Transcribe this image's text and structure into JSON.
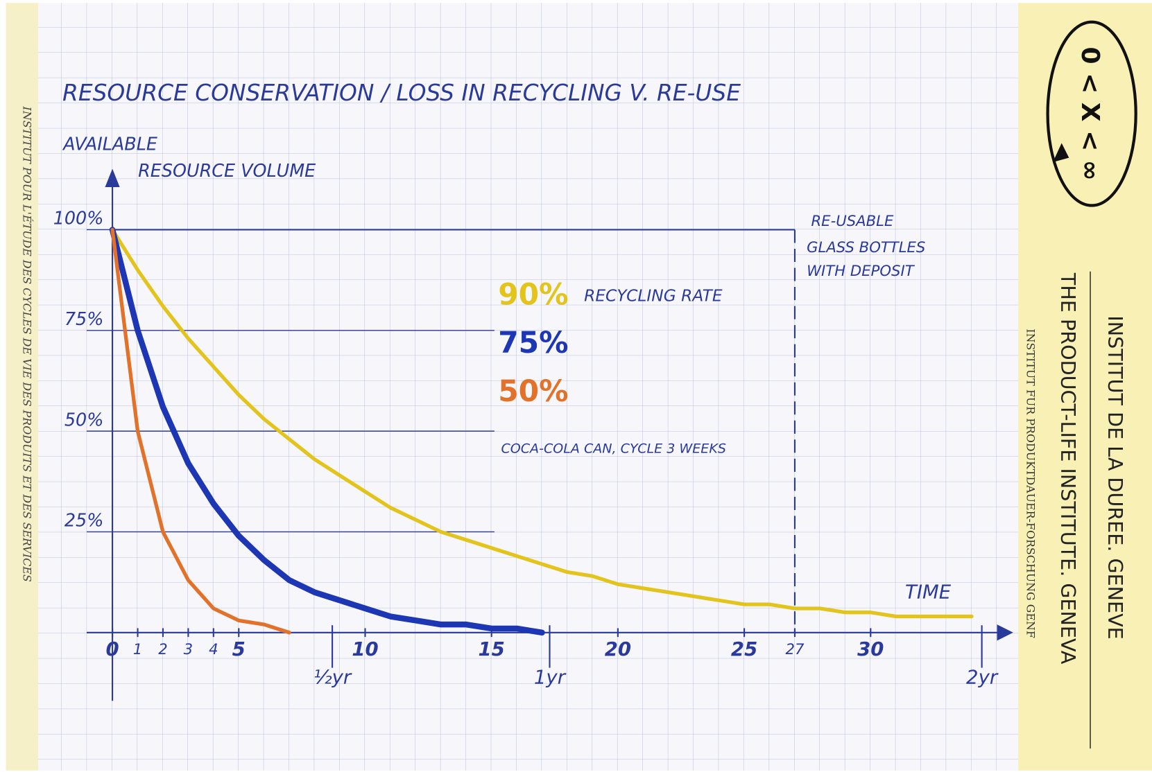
{
  "chart_data": {
    "type": "line",
    "title": "RESOURCE CONSERVATION / LOSS IN RECYCLING V. RE-USE",
    "ylabel": [
      "AVAILABLE",
      "RESOURCE VOLUME"
    ],
    "xlabel": "TIME",
    "legend_title": "RECYCLING RATE",
    "x": [
      0,
      1,
      2,
      3,
      4,
      5,
      6,
      7,
      8,
      9,
      10,
      11,
      12,
      13,
      14,
      15,
      16,
      17,
      18,
      19,
      20,
      21,
      22,
      23,
      24,
      25,
      26,
      27,
      28,
      29,
      30,
      31,
      32,
      33,
      34
    ],
    "series": [
      {
        "name": "90%",
        "color": "#e3c41c",
        "values": [
          100,
          90,
          81,
          73,
          66,
          59,
          53,
          48,
          43,
          39,
          35,
          31,
          28,
          25,
          23,
          21,
          19,
          17,
          15,
          14,
          12,
          11,
          10,
          9,
          8,
          7,
          7,
          6,
          6,
          5,
          5,
          4,
          4,
          4,
          4
        ]
      },
      {
        "name": "75%",
        "color": "#1c36b4",
        "values": [
          100,
          75,
          56,
          42,
          32,
          24,
          18,
          13,
          10,
          8,
          6,
          4,
          3,
          2,
          2,
          1,
          1,
          0,
          null,
          null,
          null,
          null,
          null,
          null,
          null,
          null,
          null,
          null,
          null,
          null,
          null,
          null,
          null,
          null,
          null
        ]
      },
      {
        "name": "50%",
        "color": "#e2722a",
        "values": [
          100,
          50,
          25,
          13,
          6,
          3,
          2,
          0,
          null,
          null,
          null,
          null,
          null,
          null,
          null,
          null,
          null,
          null,
          null,
          null,
          null,
          null,
          null,
          null,
          null,
          null,
          null,
          null,
          null,
          null,
          null,
          null,
          null,
          null,
          null
        ]
      }
    ],
    "xlim": [
      0,
      35
    ],
    "ylim": [
      0,
      100
    ],
    "xticks": [
      0,
      1,
      2,
      3,
      4,
      5,
      10,
      15,
      20,
      25,
      27,
      30
    ],
    "x2ticks": [
      {
        "value": 8.7,
        "label": "½yr"
      },
      {
        "value": 17.3,
        "label": "1yr"
      },
      {
        "value": 34.4,
        "label": "2yr"
      }
    ],
    "yticks": [
      {
        "value": 25,
        "label": "25%"
      },
      {
        "value": 50,
        "label": "50%"
      },
      {
        "value": 75,
        "label": "75%"
      },
      {
        "value": 100,
        "label": "100%"
      }
    ],
    "annotation": "COCA-COLA CAN, CYCLE 3 WEEKS",
    "reuse": {
      "text": [
        "RE-USABLE",
        "GLASS BOTTLES",
        "WITH DEPOSIT"
      ],
      "value": 100,
      "x_end": 27
    }
  },
  "side_panel": {
    "logo": "0 < X < ∞",
    "lines": [
      "INSTITUT DE LA DUREE. GENEVE",
      "THE PRODUCT-LIFE INSTITUTE. GENEVA",
      "INSTITUT FUR PRODUKTDAUER-FORSCHUNG GENF"
    ],
    "left_margin": "INSTITUT POUR L'ÉTUDE DES CYCLES DE VIE DES PRODUITS ET DES SERVICES"
  }
}
